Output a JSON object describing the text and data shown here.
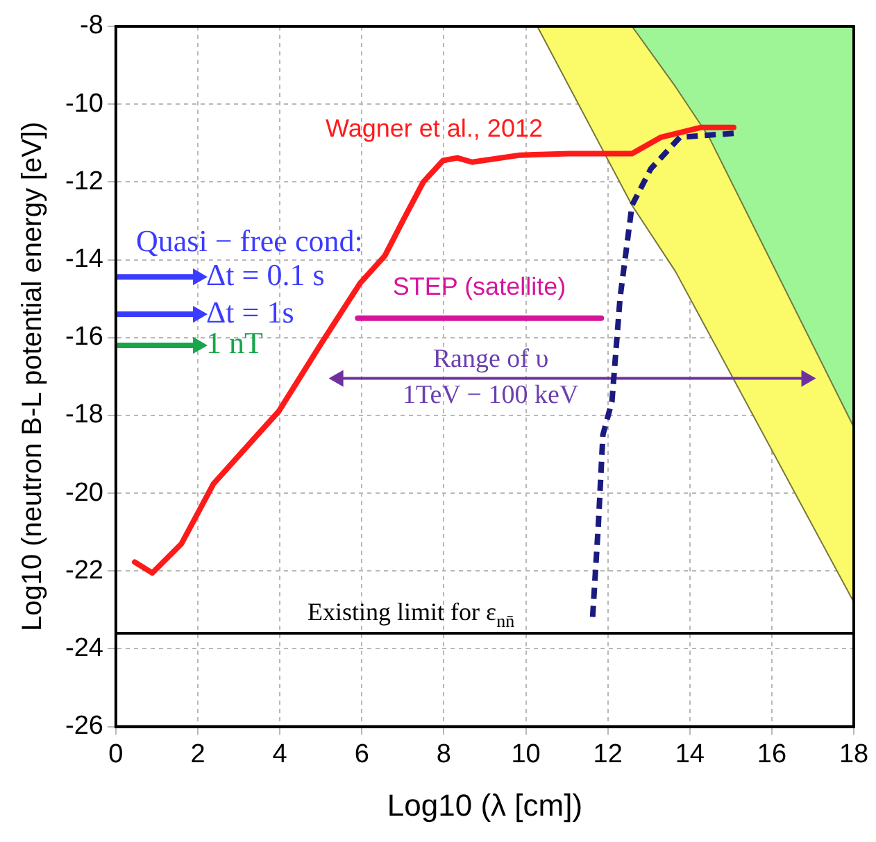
{
  "chart_data": {
    "type": "line",
    "xlabel": "Log10 (λ [cm])",
    "ylabel": "Log10 (neutron B-L potential energy [eV])",
    "xlim": [
      0,
      18
    ],
    "xticks": [
      0,
      2,
      4,
      6,
      8,
      10,
      12,
      14,
      16,
      18
    ],
    "ylim": [
      -26,
      -8
    ],
    "yticks": [
      -26,
      -24,
      -22,
      -20,
      -18,
      -16,
      -14,
      -12,
      -10,
      -8
    ],
    "grid": true,
    "legend": false,
    "marker": "none",
    "series": [
      {
        "type": "area",
        "color": "#fbfb6a",
        "x": [
          10.28,
          12.59,
          13.65,
          14.47,
          18
        ],
        "values": [
          -8,
          -12.6,
          -14.3,
          -15.9,
          -22.8
        ]
      },
      {
        "type": "area",
        "color": "#9ef595",
        "x": [
          12.59,
          13.65,
          14.47,
          18
        ],
        "values": [
          -8,
          -9.55,
          -10.85,
          -18.3
        ]
      },
      {
        "type": "line",
        "name": "Wagner et al., 2012",
        "color": "#ff1a1a",
        "x": [
          0.46,
          0.89,
          1.6,
          2.38,
          3.37,
          3.97,
          5.04,
          5.96,
          6.56,
          7.02,
          7.5,
          7.98,
          8.33,
          8.69,
          9.86,
          11.06,
          12.59,
          13.3,
          14.26,
          15.07
        ],
        "values": [
          -21.77,
          -22.05,
          -21.3,
          -19.76,
          -18.6,
          -17.9,
          -16.1,
          -14.6,
          -13.9,
          -12.96,
          -12.0,
          -11.45,
          -11.38,
          -11.49,
          -11.31,
          -11.27,
          -11.27,
          -10.85,
          -10.6,
          -10.6
        ]
      },
      {
        "type": "line",
        "color": "#1a1a80",
        "line_style": "dashed",
        "x": [
          11.63,
          11.77,
          11.88,
          12.1,
          12.3,
          12.59,
          13.05,
          13.76,
          15.07
        ],
        "values": [
          -23.18,
          -20.8,
          -18.5,
          -17.65,
          -14.97,
          -12.6,
          -11.66,
          -10.85,
          -10.75
        ]
      },
      {
        "type": "line",
        "name": "STEP (satellite)",
        "color": "#d6149b",
        "x": [
          5.9,
          11.84
        ],
        "values": [
          -15.5,
          -15.5
        ]
      },
      {
        "type": "line",
        "color": "#7030a0",
        "marker": "triangle",
        "x": [
          5.43,
          16.84
        ],
        "values": [
          -17.05,
          -17.05
        ]
      },
      {
        "type": "line",
        "name": "Δt = 0.1 s",
        "color": "#3b3bff",
        "marker": "triangle",
        "x": [
          0,
          2.0
        ],
        "values": [
          -14.44,
          -14.44
        ]
      },
      {
        "type": "line",
        "name": "Δt = 1s",
        "color": "#3b3bff",
        "marker": "triangle",
        "x": [
          0,
          2.0
        ],
        "values": [
          -15.4,
          -15.4
        ]
      },
      {
        "type": "line",
        "name": "1 nT",
        "color": "#17a64a",
        "marker": "triangle",
        "x": [
          0,
          2.0
        ],
        "values": [
          -16.2,
          -16.2
        ]
      }
    ],
    "ref_lines": [
      {
        "axis": "y",
        "value": -23.6,
        "label": "Existing limit for ε$_{nn̄}$",
        "color": "#000000"
      }
    ],
    "annotations": [
      "Quasi − free cond:",
      "Range of υ",
      "1TeV − 100 keV"
    ]
  }
}
